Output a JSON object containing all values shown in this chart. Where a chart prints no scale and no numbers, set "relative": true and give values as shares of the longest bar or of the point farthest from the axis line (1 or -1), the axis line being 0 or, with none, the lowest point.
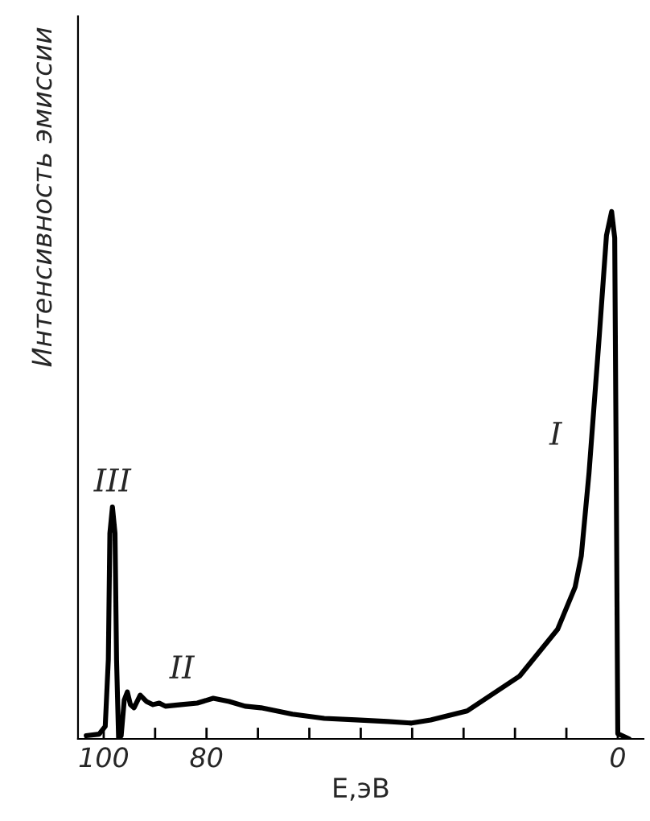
{
  "chart_data": {
    "type": "line",
    "relative": true,
    "xlabel": "Е,эВ",
    "ylabel": "Интенсивность эмиссии",
    "x": [
      103.4,
      100.9,
      99.7,
      99.1,
      98.8,
      98.3,
      97.8,
      97.5,
      97.1,
      96.6,
      96.0,
      95.4,
      94.8,
      94.1,
      92.9,
      91.7,
      90.4,
      89.2,
      88.0,
      84.9,
      81.8,
      78.7,
      75.6,
      72.5,
      69.4,
      63.3,
      57.1,
      50.9,
      44.8,
      40.1,
      36.4,
      29.3,
      19.1,
      11.7,
      8.3,
      7.1,
      5.6,
      3.7,
      2.2,
      1.2,
      0.6,
      0.3,
      0.0,
      -2.2
    ],
    "series": [
      {
        "color": "#000000",
        "values": [
          0.006,
          0.009,
          0.024,
          0.15,
          0.39,
          0.44,
          0.39,
          0.15,
          0.0,
          0.006,
          0.074,
          0.089,
          0.065,
          0.059,
          0.083,
          0.071,
          0.065,
          0.068,
          0.062,
          0.065,
          0.068,
          0.077,
          0.071,
          0.062,
          0.059,
          0.047,
          0.039,
          0.036,
          0.033,
          0.03,
          0.036,
          0.053,
          0.119,
          0.208,
          0.288,
          0.347,
          0.504,
          0.751,
          0.955,
          1.0,
          0.95,
          0.5,
          0.01,
          0.0
        ]
      }
    ],
    "xlim": [
      105,
      -5
    ],
    "xticks": [
      100,
      {
        "value": 90,
        "label": null
      },
      80,
      {
        "value": 70,
        "label": null
      },
      {
        "value": 60,
        "label": null
      },
      {
        "value": 50,
        "label": null
      },
      {
        "value": 40,
        "label": null
      },
      {
        "value": 30,
        "label": null
      },
      {
        "value": 20,
        "label": null
      },
      {
        "value": 10,
        "label": null
      },
      0
    ],
    "annotations": [
      {
        "text": "III",
        "x": 98.3,
        "y": 0.44
      },
      {
        "text": "II",
        "x": 78.7,
        "y": 0.077
      },
      {
        "text": "I",
        "x": 6.0,
        "y": 0.52
      }
    ],
    "grid": false,
    "legend": false,
    "marker": "none",
    "line_style": "solid"
  }
}
